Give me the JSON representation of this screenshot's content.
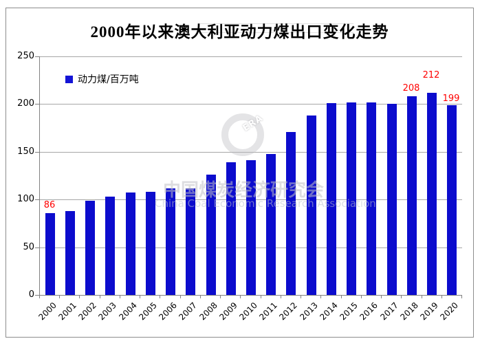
{
  "title": "2000年以来澳大利亚动力煤出口变化走势",
  "legend": {
    "label": "动力煤/百万吨"
  },
  "watermark": {
    "logo_text": "ERA",
    "cn_text": "中国煤炭经济研究会",
    "en_text": "China Coal Economic Research Association"
  },
  "colors": {
    "bar": "#0c0ccd",
    "value_label": "#ff0000",
    "gridline": "#a6a6a6",
    "axis": "#808080"
  },
  "chart_data": {
    "type": "bar",
    "title": "2000年以来澳大利亚动力煤出口变化走势",
    "series_name": "动力煤/百万吨",
    "categories": [
      "2000",
      "2001",
      "2002",
      "2003",
      "2004",
      "2005",
      "2006",
      "2007",
      "2008",
      "2009",
      "2010",
      "2011",
      "2012",
      "2013",
      "2014",
      "2015",
      "2016",
      "2017",
      "2018",
      "2019",
      "2020"
    ],
    "values": [
      86,
      88,
      99,
      103,
      107,
      108,
      112,
      112,
      126,
      139,
      141,
      148,
      171,
      188,
      201,
      202,
      202,
      200,
      208,
      212,
      199
    ],
    "data_labels": [
      {
        "index": 0,
        "value": 86
      },
      {
        "index": 18,
        "value": 208
      },
      {
        "index": 19,
        "value": 212
      },
      {
        "index": 20,
        "value": 199
      }
    ],
    "xlabel": "",
    "ylabel": "",
    "ylim": [
      0,
      250
    ],
    "yticks": [
      0,
      50,
      100,
      150,
      200,
      250
    ],
    "grid": true,
    "legend_position": "top-left"
  }
}
